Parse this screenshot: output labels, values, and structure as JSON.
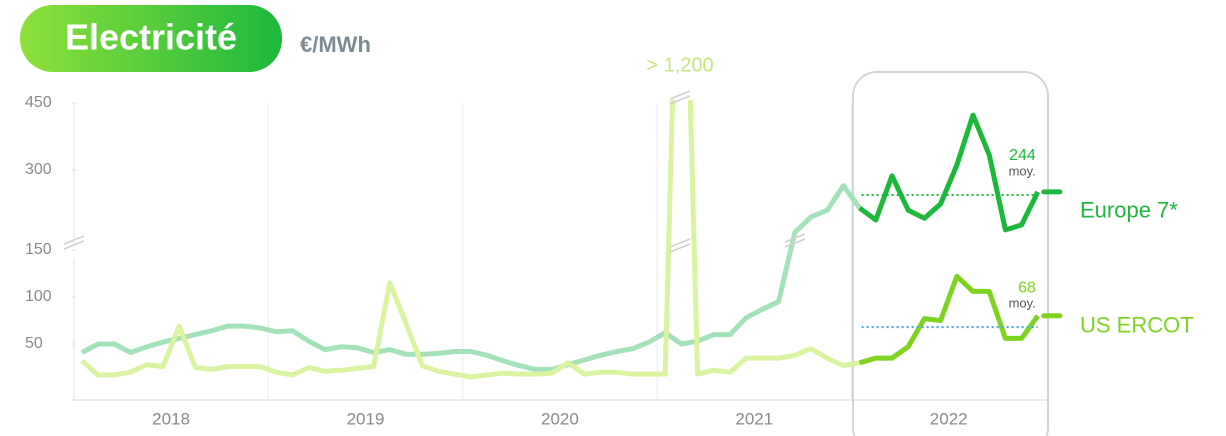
{
  "chart_data": {
    "type": "line",
    "title": "Electricité",
    "subtitle": "€/MWh",
    "categories": [
      "2018",
      "2019",
      "2020",
      "2021",
      "2022"
    ],
    "highlight_category": 4,
    "ylim": [
      0,
      450
    ],
    "axis_break": 150,
    "yticks": [
      50,
      100,
      150,
      300,
      450
    ],
    "annotation": "> 1,200",
    "series": [
      {
        "name": "Europe 7*",
        "color": "#a3e2b8",
        "highlight_color": "#1db83a",
        "average": 244,
        "average_label": "moy.",
        "average_color": "#1db83a",
        "values": [
          [
            41,
            50,
            50,
            41,
            47,
            52,
            56,
            60,
            64,
            69,
            69,
            67
          ],
          [
            63,
            64,
            53,
            44,
            47,
            46,
            41,
            44,
            39,
            39,
            40,
            42
          ],
          [
            42,
            38,
            32,
            27,
            23,
            23,
            28,
            33,
            38,
            42,
            45,
            52
          ],
          [
            62,
            50,
            53,
            60,
            60,
            78,
            87,
            95,
            160,
            195,
            210,
            265
          ],
          [
            215,
            188,
            287,
            210,
            192,
            224,
            311,
            423,
            334,
            166,
            177,
            251
          ]
        ]
      },
      {
        "name": "US ERCOT",
        "color": "#d9f3a0",
        "highlight_color": "#7ed321",
        "average": 68,
        "average_label": "moy.",
        "average_color": "#3aa3e0",
        "values": [
          [
            32,
            17,
            17,
            20,
            28,
            26,
            69,
            25,
            23,
            26,
            26,
            26
          ],
          [
            20,
            17,
            25,
            21,
            22,
            24,
            26,
            115,
            72,
            27,
            21,
            18
          ],
          [
            15,
            17,
            19,
            18,
            18,
            19,
            30,
            18,
            20,
            20,
            18,
            18
          ],
          [
            18,
            1200,
            18,
            22,
            20,
            35,
            35,
            35,
            38,
            45,
            35,
            27
          ],
          [
            30,
            35,
            35,
            47,
            77,
            75,
            122,
            106,
            106,
            56,
            56,
            80
          ]
        ]
      }
    ]
  }
}
